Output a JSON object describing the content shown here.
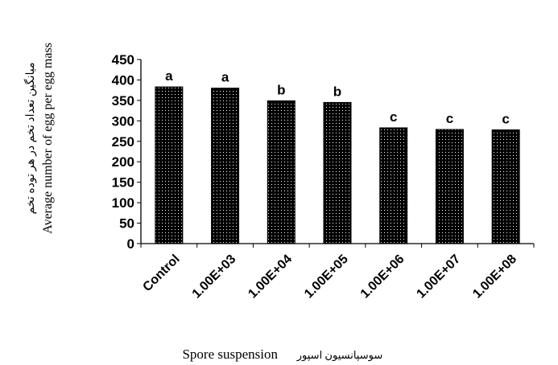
{
  "chart_data": {
    "type": "bar",
    "categories": [
      "Control",
      "1.00E+03",
      "1.00E+04",
      "1.00E+05",
      "1.00E+06",
      "1.00E+07",
      "1.00E+08"
    ],
    "values": [
      383,
      380,
      349,
      345,
      283,
      279,
      278
    ],
    "significance_letters": [
      "a",
      "a",
      "b",
      "b",
      "c",
      "c",
      "c"
    ],
    "ylabel": "Average number of egg per egg mass",
    "ylabel_fa": "میانگین تعداد تخم در هر توده تخم",
    "xlabel": "Spore suspension",
    "xlabel_fa": "سوسپانسیون اسپور",
    "ylim": [
      0,
      450
    ],
    "yticks": [
      0,
      50,
      100,
      150,
      200,
      250,
      300,
      350,
      400,
      450
    ],
    "grid": false,
    "bar_fill": "dotted-black"
  }
}
